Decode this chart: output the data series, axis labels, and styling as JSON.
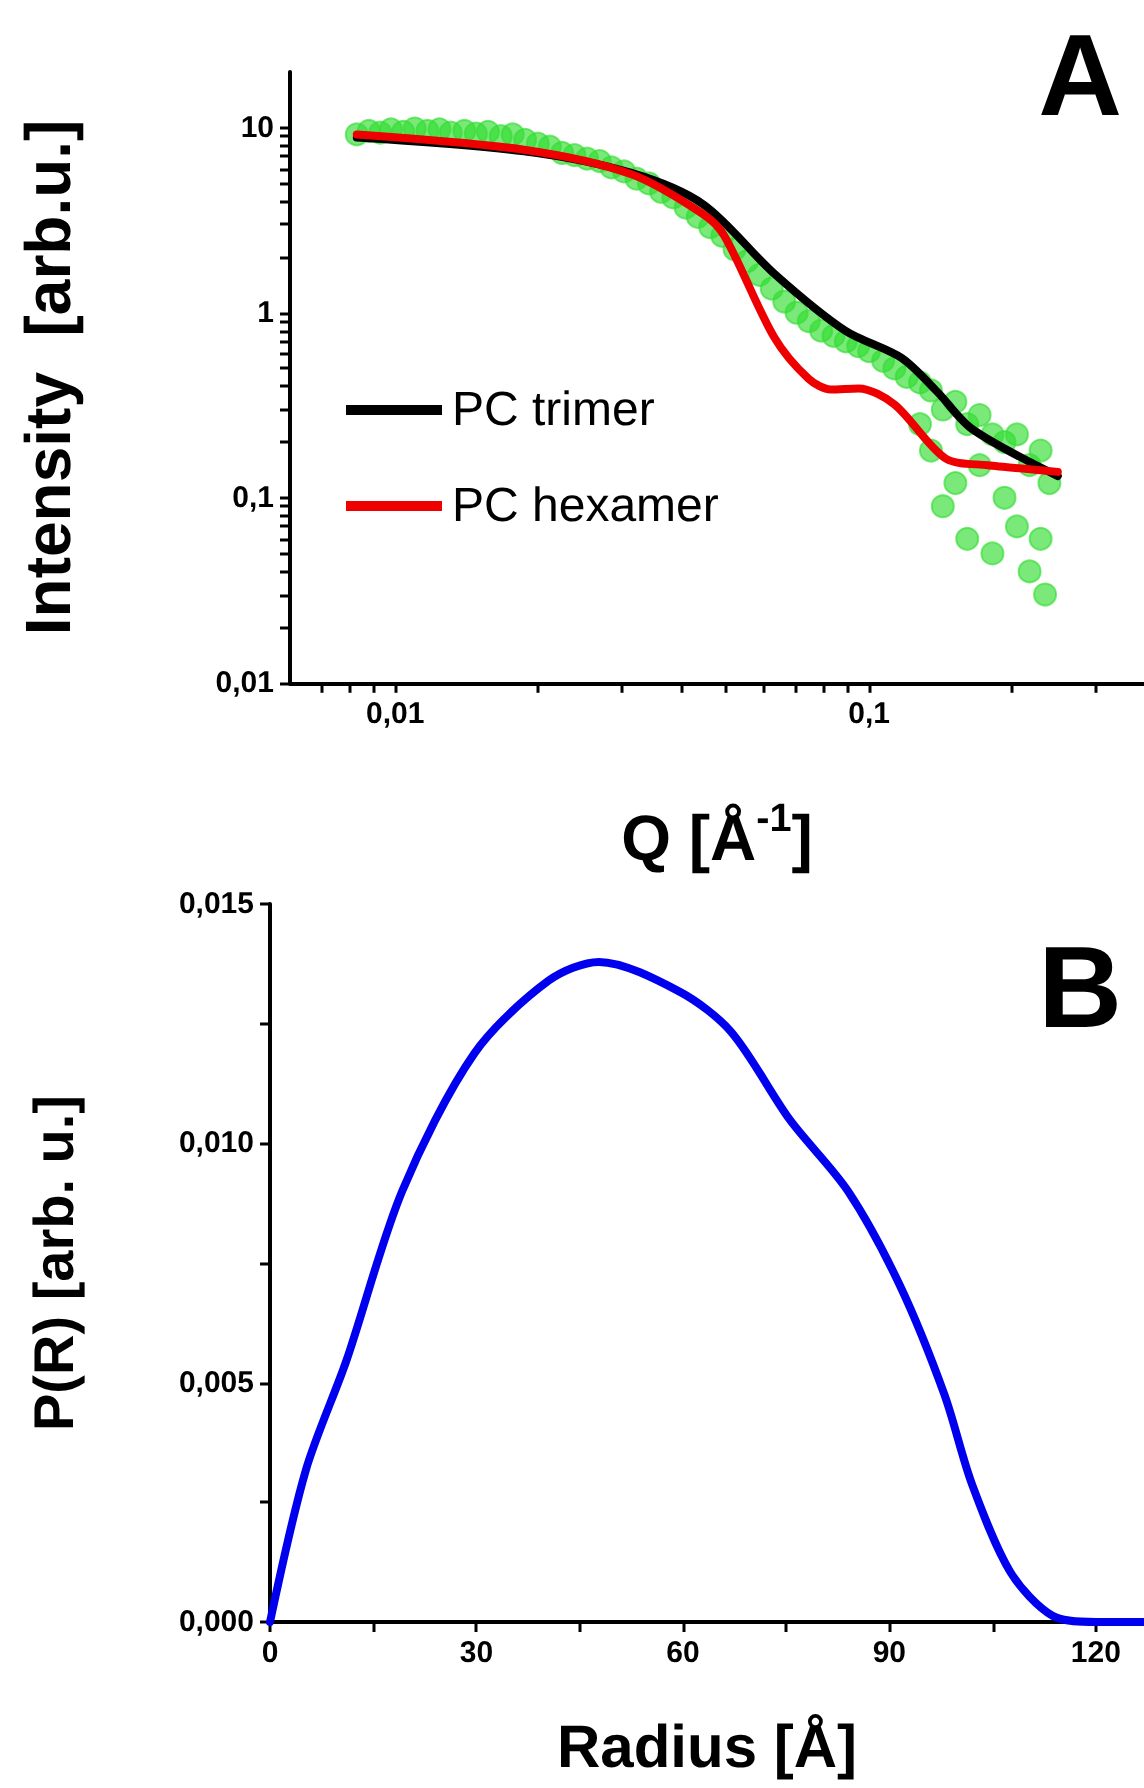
{
  "chart_data": [
    {
      "type": "line",
      "title": "A",
      "xlabel": "Q [Å$^{-1}$]",
      "ylabel": "Intensity  [arb.u.]",
      "log": "xy",
      "legend": "bottom left",
      "grid": false,
      "xlim": [
        0.006,
        0.38
      ],
      "ylim": [
        0.01,
        20
      ],
      "xticks": [
        {
          "value": 0.007,
          "label": null
        },
        {
          "value": 0.008,
          "label": null
        },
        {
          "value": 0.009,
          "label": null
        },
        {
          "value": 0.01,
          "label": "0,01"
        },
        {
          "value": 0.02,
          "label": null
        },
        {
          "value": 0.03,
          "label": null
        },
        {
          "value": 0.04,
          "label": null
        },
        {
          "value": 0.05,
          "label": null
        },
        {
          "value": 0.06,
          "label": null
        },
        {
          "value": 0.07,
          "label": null
        },
        {
          "value": 0.08,
          "label": null
        },
        {
          "value": 0.09,
          "label": null
        },
        {
          "value": 0.1,
          "label": "0,1"
        },
        {
          "value": 0.2,
          "label": null
        },
        {
          "value": 0.3,
          "label": null
        }
      ],
      "yticks": [
        {
          "value": 0.01,
          "label": "0,01"
        },
        {
          "value": 0.02,
          "label": null
        },
        {
          "value": 0.03,
          "label": null
        },
        {
          "value": 0.04,
          "label": null
        },
        {
          "value": 0.05,
          "label": null
        },
        {
          "value": 0.06,
          "label": null
        },
        {
          "value": 0.07,
          "label": null
        },
        {
          "value": 0.08,
          "label": null
        },
        {
          "value": 0.09,
          "label": null
        },
        {
          "value": 0.1,
          "label": "0,1"
        },
        {
          "value": 0.2,
          "label": null
        },
        {
          "value": 0.3,
          "label": null
        },
        {
          "value": 0.4,
          "label": null
        },
        {
          "value": 0.5,
          "label": null
        },
        {
          "value": 0.6,
          "label": null
        },
        {
          "value": 0.7,
          "label": null
        },
        {
          "value": 0.8,
          "label": null
        },
        {
          "value": 0.9,
          "label": null
        },
        {
          "value": 1,
          "label": "1"
        },
        {
          "value": 2,
          "label": null
        },
        {
          "value": 3,
          "label": null
        },
        {
          "value": 4,
          "label": null
        },
        {
          "value": 5,
          "label": null
        },
        {
          "value": 6,
          "label": null
        },
        {
          "value": 7,
          "label": null
        },
        {
          "value": 8,
          "label": null
        },
        {
          "value": 9,
          "label": null
        },
        {
          "value": 10,
          "label": "10"
        }
      ],
      "series": [
        {
          "type": "scatter",
          "color": "#33dd33",
          "marker": "circle",
          "x": [
            0.0083,
            0.0088,
            0.0093,
            0.0098,
            0.0104,
            0.011,
            0.0117,
            0.0124,
            0.0131,
            0.014,
            0.0148,
            0.0157,
            0.0167,
            0.0177,
            0.0188,
            0.02,
            0.0212,
            0.0225,
            0.0239,
            0.0254,
            0.027,
            0.0286,
            0.0304,
            0.0323,
            0.0343,
            0.0364,
            0.0386,
            0.041,
            0.0435,
            0.0462,
            0.049,
            0.052,
            0.0553,
            0.0587,
            0.0623,
            0.0662,
            0.0703,
            0.0746,
            0.0792,
            0.0841,
            0.0893,
            0.0948,
            0.1,
            0.107,
            0.113,
            0.12,
            0.128,
            0.128,
            0.135,
            0.135,
            0.143,
            0.143,
            0.152,
            0.152,
            0.161,
            0.161,
            0.171,
            0.171,
            0.182,
            0.182,
            0.193,
            0.193,
            0.205,
            0.205,
            0.218,
            0.218,
            0.23,
            0.23,
            0.235,
            0.24
          ],
          "values": [
            9.2,
            9.6,
            9.4,
            9.8,
            9.5,
            9.9,
            9.6,
            9.8,
            9.4,
            9.6,
            9.3,
            9.5,
            9.0,
            9.2,
            8.6,
            8.2,
            7.9,
            7.3,
            7.1,
            6.8,
            6.6,
            6.1,
            5.8,
            5.3,
            5.0,
            4.5,
            4.2,
            3.7,
            3.3,
            2.9,
            2.6,
            2.2,
            1.9,
            1.6,
            1.35,
            1.15,
            1.0,
            0.9,
            0.8,
            0.75,
            0.7,
            0.66,
            0.62,
            0.55,
            0.5,
            0.45,
            0.42,
            0.25,
            0.38,
            0.18,
            0.3,
            0.09,
            0.33,
            0.12,
            0.25,
            0.06,
            0.28,
            0.15,
            0.22,
            0.05,
            0.2,
            0.1,
            0.22,
            0.07,
            0.15,
            0.04,
            0.18,
            0.06,
            0.03,
            0.12
          ]
        },
        {
          "name": "PC trimer",
          "color": "#000000",
          "marker": "none",
          "x": [
            0.0083,
            0.0187,
            0.0315,
            0.0447,
            0.063,
            0.089,
            0.117,
            0.139,
            0.165,
            0.25
          ],
          "values": [
            8.85,
            7.45,
            5.7,
            3.85,
            1.63,
            0.8,
            0.57,
            0.375,
            0.235,
            0.131
          ]
        },
        {
          "name": "PC hexamer",
          "color": "#ee0000",
          "marker": "none",
          "x": [
            0.0083,
            0.0187,
            0.0315,
            0.0447,
            0.0495,
            0.063,
            0.0745,
            0.083,
            0.095,
            0.113,
            0.145,
            0.178,
            0.25
          ],
          "values": [
            9.2,
            7.6,
            5.6,
            3.4,
            2.6,
            0.74,
            0.44,
            0.385,
            0.39,
            0.32,
            0.163,
            0.15,
            0.138
          ]
        }
      ]
    },
    {
      "type": "line",
      "title": "B",
      "xlabel": "Radius [Å]",
      "ylabel": "P(R) [arb. u.]",
      "grid": false,
      "legend": false,
      "xlim": [
        0,
        127
      ],
      "ylim": [
        0,
        0.015
      ],
      "xticks": [
        0,
        {
          "value": 15,
          "label": null
        },
        30,
        {
          "value": 45,
          "label": null
        },
        60,
        {
          "value": 75,
          "label": null
        },
        90,
        {
          "value": 105,
          "label": null
        },
        120
      ],
      "yticks": [
        {
          "value": 0,
          "label": "0,000"
        },
        {
          "value": 0.0025,
          "label": null
        },
        {
          "value": 0.005,
          "label": "0,005"
        },
        {
          "value": 0.0075,
          "label": null
        },
        {
          "value": 0.01,
          "label": "0,010"
        },
        {
          "value": 0.0125,
          "label": null
        },
        {
          "value": 0.015,
          "label": "0,015"
        }
      ],
      "series": [
        {
          "color": "#0000ee",
          "marker": "none",
          "x": [
            0,
            5.2,
            11.1,
            19.2,
            29.7,
            40.5,
            47.8,
            59.5,
            67,
            75.5,
            84,
            91.5,
            98,
            102,
            107.6,
            113.7,
            120,
            127
          ],
          "values": [
            0,
            0.00317,
            0.00546,
            0.009,
            0.01188,
            0.0134,
            0.01379,
            0.01317,
            0.01233,
            0.0105,
            0.009,
            0.00704,
            0.00475,
            0.00288,
            0.00104,
            0.00013,
            0,
            0
          ]
        }
      ]
    }
  ]
}
